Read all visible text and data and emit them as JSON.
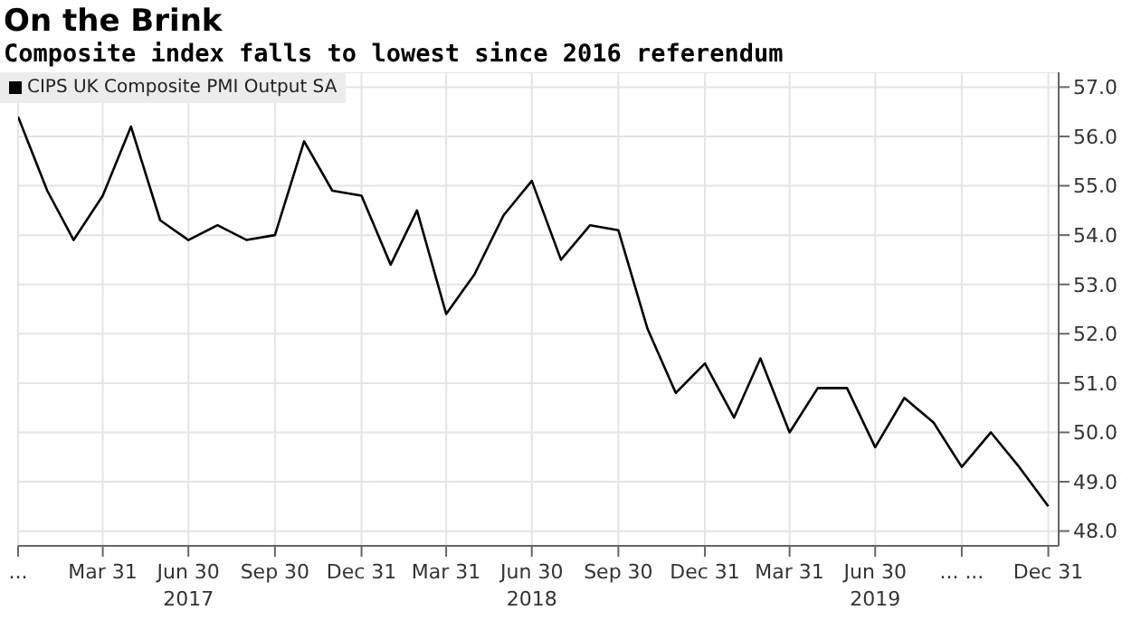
{
  "chart_data": {
    "type": "line",
    "title": "On the Brink",
    "subtitle": "Composite index falls to lowest since 2016 referendum",
    "x": [
      "2016-12-31",
      "2017-01-31",
      "2017-02-28",
      "2017-03-31",
      "2017-04-30",
      "2017-05-31",
      "2017-06-30",
      "2017-07-31",
      "2017-08-31",
      "2017-09-30",
      "2017-10-31",
      "2017-11-30",
      "2017-12-31",
      "2018-01-31",
      "2018-02-28",
      "2018-03-31",
      "2018-04-30",
      "2018-05-31",
      "2018-06-30",
      "2018-07-31",
      "2018-08-31",
      "2018-09-30",
      "2018-10-31",
      "2018-11-30",
      "2018-12-31",
      "2019-01-31",
      "2019-02-28",
      "2019-03-31",
      "2019-04-30",
      "2019-05-31",
      "2019-06-30",
      "2019-07-31",
      "2019-08-31",
      "2019-09-30",
      "2019-10-31",
      "2019-11-30",
      "2019-12-31"
    ],
    "series": [
      {
        "name": "CIPS UK Composite PMI Output SA",
        "color": "#000000",
        "values": [
          56.4,
          54.9,
          53.9,
          54.8,
          56.2,
          54.3,
          53.9,
          54.2,
          53.9,
          54.0,
          55.9,
          54.9,
          54.8,
          53.4,
          54.5,
          52.4,
          53.2,
          54.4,
          55.1,
          53.5,
          54.2,
          54.1,
          52.1,
          50.8,
          51.4,
          50.3,
          51.5,
          50.0,
          50.9,
          50.9,
          49.7,
          50.7,
          50.2,
          49.3,
          50.0,
          49.3,
          48.5
        ]
      }
    ],
    "xlim": [
      "2016-12-31",
      "2020-01-11"
    ],
    "xticks": [
      {
        "value": "2016-12-31",
        "label": "..."
      },
      {
        "value": "2017-03-31",
        "label": "Mar 31"
      },
      {
        "value": "2017-06-30",
        "label": "Jun 30\n2017"
      },
      {
        "value": "2017-09-30",
        "label": "Sep 30"
      },
      {
        "value": "2017-12-31",
        "label": "Dec 31"
      },
      {
        "value": "2018-03-31",
        "label": "Mar 31"
      },
      {
        "value": "2018-06-30",
        "label": "Jun 30\n2018"
      },
      {
        "value": "2018-09-30",
        "label": "Sep 30"
      },
      {
        "value": "2018-12-31",
        "label": "Dec 31"
      },
      {
        "value": "2019-03-31",
        "label": "Mar 31"
      },
      {
        "value": "2019-06-30",
        "label": "Jun 30\n2019"
      },
      {
        "value": "2019-09-30",
        "label": "... ..."
      },
      {
        "value": "2019-12-31",
        "label": "Dec 31"
      }
    ],
    "ylim": [
      47.7,
      57.3
    ],
    "yticks": [
      {
        "value": 48,
        "label": "48.0"
      },
      {
        "value": 49,
        "label": "49.0"
      },
      {
        "value": 50,
        "label": "50.0"
      },
      {
        "value": 51,
        "label": "51.0"
      },
      {
        "value": 52,
        "label": "52.0"
      },
      {
        "value": 53,
        "label": "53.0"
      },
      {
        "value": 54,
        "label": "54.0"
      },
      {
        "value": 55,
        "label": "55.0"
      },
      {
        "value": 56,
        "label": "56.0"
      },
      {
        "value": 57,
        "label": "57.0"
      }
    ],
    "grid": true,
    "legend": "top left",
    "marker": "none",
    "line_style": "solid"
  }
}
